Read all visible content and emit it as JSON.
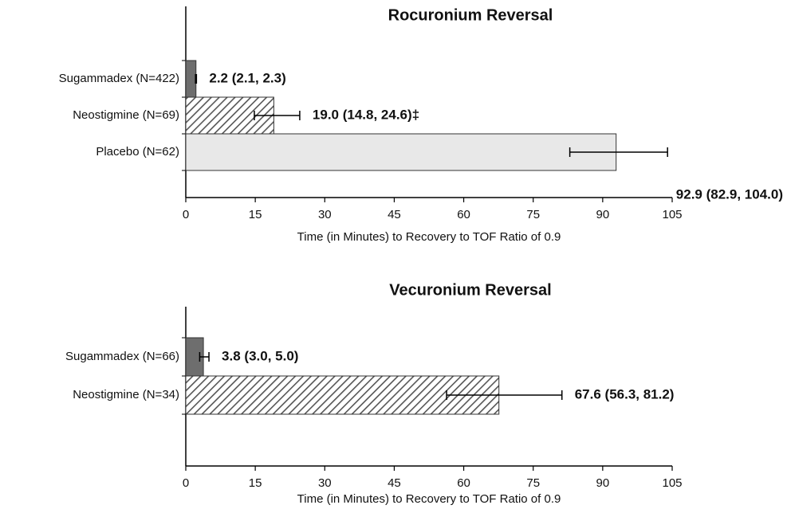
{
  "chart_data": [
    {
      "type": "bar",
      "orientation": "horizontal",
      "title": "Rocuronium  Reversal",
      "categories": [
        "Sugammadex  (N=422)",
        "Neostigmine  (N=69)",
        "Placebo  (N=62)"
      ],
      "values": [
        2.2,
        19.0,
        92.9
      ],
      "ci_low": [
        2.1,
        14.8,
        82.9
      ],
      "ci_high": [
        2.3,
        24.6,
        104.0
      ],
      "value_labels": [
        "2.2 (2.1, 2.3)",
        "19.0 (14.8, 24.6)‡",
        "92.9 (82.9, 104.0)"
      ],
      "colors": [
        "#6e6e6e",
        "#ffffff",
        "#e8e8e8"
      ],
      "hatched": [
        false,
        true,
        false
      ],
      "xlim": [
        0,
        105
      ],
      "xticks": [
        0,
        15,
        30,
        45,
        60,
        75,
        90,
        105
      ],
      "xlabel": "Time  (in Minutes)  to  Recovery to TOF  Ratio of 0.9"
    },
    {
      "type": "bar",
      "orientation": "horizontal",
      "title": "Vecuronium  Reversal",
      "categories": [
        "Sugammadex  (N=66)",
        "Neostigmine  (N=34)"
      ],
      "values": [
        3.8,
        67.6
      ],
      "ci_low": [
        3.0,
        56.3
      ],
      "ci_high": [
        5.0,
        81.2
      ],
      "value_labels": [
        "3.8 (3.0, 5.0)",
        "67.6 (56.3, 81.2)"
      ],
      "colors": [
        "#6e6e6e",
        "#ffffff"
      ],
      "hatched": [
        false,
        true
      ],
      "xlim": [
        0,
        105
      ],
      "xticks": [
        0,
        15,
        30,
        45,
        60,
        75,
        90,
        105
      ],
      "xlabel": "Time  (in Minutes)  to  Recovery to TOF  Ratio of 0.9"
    }
  ]
}
